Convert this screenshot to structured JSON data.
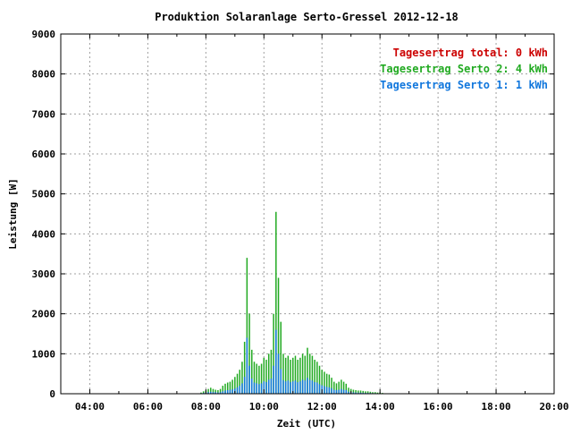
{
  "chart_data": {
    "type": "bar",
    "title": "Produktion Solaranlage Serto-Gressel 2012-12-18",
    "xlabel": "Zeit (UTC)",
    "ylabel": "Leistung [W]",
    "x_range_hours": [
      3.0,
      20.0
    ],
    "ylim": [
      0,
      9000
    ],
    "grid": true,
    "legend_position": "top-right",
    "x_ticks": [
      {
        "h": 4,
        "label": "04:00"
      },
      {
        "h": 6,
        "label": "06:00"
      },
      {
        "h": 8,
        "label": "08:00"
      },
      {
        "h": 10,
        "label": "10:00"
      },
      {
        "h": 12,
        "label": "12:00"
      },
      {
        "h": 14,
        "label": "14:00"
      },
      {
        "h": 16,
        "label": "16:00"
      },
      {
        "h": 18,
        "label": "18:00"
      },
      {
        "h": 20,
        "label": "20:00"
      }
    ],
    "y_ticks": [
      {
        "v": 0,
        "label": "0"
      },
      {
        "v": 1000,
        "label": "1000"
      },
      {
        "v": 2000,
        "label": "2000"
      },
      {
        "v": 3000,
        "label": "3000"
      },
      {
        "v": 4000,
        "label": "4000"
      },
      {
        "v": 5000,
        "label": "5000"
      },
      {
        "v": 6000,
        "label": "6000"
      },
      {
        "v": 7000,
        "label": "7000"
      },
      {
        "v": 8000,
        "label": "8000"
      },
      {
        "v": 9000,
        "label": "9000"
      }
    ],
    "legend": [
      {
        "label": "Tagesertrag total: 0 kWh",
        "color": "#cc0000"
      },
      {
        "label": "Tagesertrag Serto 2: 4 kWh",
        "color": "#22aa22"
      },
      {
        "label": "Tagesertrag Serto 1: 1 kWh",
        "color": "#1177dd"
      }
    ],
    "series": [
      {
        "name": "Serto 2",
        "color": "#22aa22",
        "x": [
          "07:50",
          "07:55",
          "08:00",
          "08:05",
          "08:10",
          "08:15",
          "08:20",
          "08:25",
          "08:30",
          "08:35",
          "08:40",
          "08:45",
          "08:50",
          "08:55",
          "09:00",
          "09:05",
          "09:10",
          "09:15",
          "09:20",
          "09:25",
          "09:30",
          "09:35",
          "09:40",
          "09:45",
          "09:50",
          "09:55",
          "10:00",
          "10:05",
          "10:10",
          "10:15",
          "10:20",
          "10:25",
          "10:30",
          "10:35",
          "10:40",
          "10:45",
          "10:50",
          "10:55",
          "11:00",
          "11:05",
          "11:10",
          "11:15",
          "11:20",
          "11:25",
          "11:30",
          "11:35",
          "11:40",
          "11:45",
          "11:50",
          "11:55",
          "12:00",
          "12:05",
          "12:10",
          "12:15",
          "12:20",
          "12:25",
          "12:30",
          "12:35",
          "12:40",
          "12:45",
          "12:50",
          "12:55",
          "13:00",
          "13:05",
          "13:10",
          "13:15",
          "13:20",
          "13:25",
          "13:30",
          "13:35",
          "13:40",
          "13:45",
          "13:50",
          "13:55",
          "14:00",
          "14:05",
          "14:10"
        ],
        "values": [
          30,
          60,
          80,
          120,
          150,
          120,
          100,
          90,
          120,
          200,
          250,
          280,
          300,
          350,
          420,
          500,
          600,
          800,
          1300,
          3400,
          2000,
          1100,
          800,
          750,
          700,
          750,
          900,
          850,
          1000,
          1100,
          2000,
          4550,
          2900,
          1800,
          1000,
          900,
          950,
          850,
          900,
          950,
          850,
          900,
          1000,
          950,
          1150,
          1000,
          950,
          850,
          800,
          700,
          600,
          550,
          500,
          480,
          400,
          300,
          260,
          300,
          350,
          300,
          250,
          150,
          120,
          100,
          90,
          80,
          80,
          70,
          60,
          60,
          50,
          40,
          40,
          30,
          30,
          20,
          10
        ]
      },
      {
        "name": "Serto 1",
        "color": "#1177dd",
        "x": [
          "07:50",
          "07:55",
          "08:00",
          "08:05",
          "08:10",
          "08:15",
          "08:20",
          "08:25",
          "08:30",
          "08:35",
          "08:40",
          "08:45",
          "08:50",
          "08:55",
          "09:00",
          "09:05",
          "09:10",
          "09:15",
          "09:20",
          "09:25",
          "09:30",
          "09:35",
          "09:40",
          "09:45",
          "09:50",
          "09:55",
          "10:00",
          "10:05",
          "10:10",
          "10:15",
          "10:20",
          "10:25",
          "10:30",
          "10:35",
          "10:40",
          "10:45",
          "10:50",
          "10:55",
          "11:00",
          "11:05",
          "11:10",
          "11:15",
          "11:20",
          "11:25",
          "11:30",
          "11:35",
          "11:40",
          "11:45",
          "11:50",
          "11:55",
          "12:00",
          "12:05",
          "12:10",
          "12:15",
          "12:20",
          "12:25",
          "12:30",
          "12:35",
          "12:40",
          "12:45",
          "12:50",
          "12:55",
          "13:00",
          "13:05",
          "13:10",
          "13:15",
          "13:20",
          "13:25",
          "13:30",
          "13:35",
          "13:40",
          "13:45",
          "13:50",
          "13:55",
          "14:00",
          "14:05",
          "14:10"
        ],
        "values": [
          10,
          20,
          30,
          40,
          50,
          40,
          40,
          30,
          40,
          60,
          80,
          90,
          100,
          110,
          130,
          160,
          200,
          260,
          420,
          1400,
          700,
          380,
          280,
          260,
          240,
          260,
          310,
          290,
          350,
          380,
          700,
          1600,
          1000,
          620,
          340,
          310,
          330,
          290,
          310,
          330,
          290,
          310,
          350,
          330,
          400,
          350,
          330,
          290,
          280,
          240,
          210,
          190,
          170,
          160,
          140,
          100,
          90,
          100,
          120,
          100,
          90,
          50,
          40,
          35,
          30,
          27,
          27,
          24,
          20,
          20,
          17,
          14,
          14,
          10,
          10,
          7,
          3
        ]
      }
    ]
  }
}
